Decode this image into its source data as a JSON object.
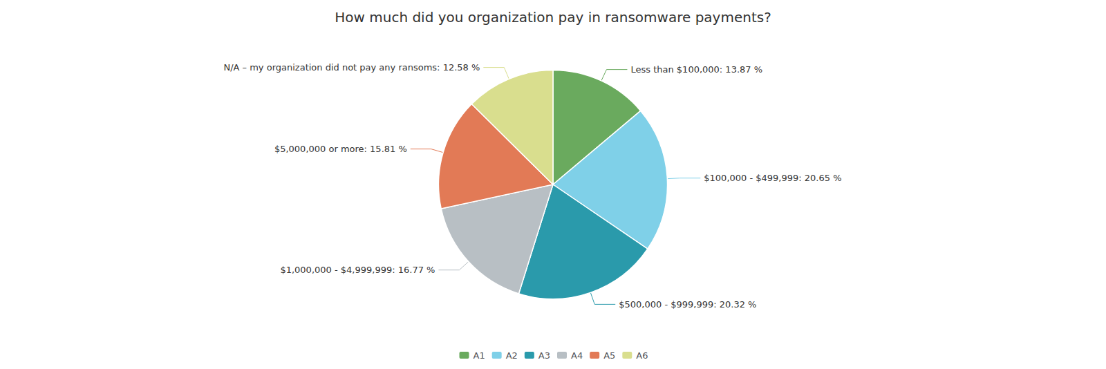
{
  "chart_data": {
    "type": "pie",
    "title": "How much did you organization pay in ransomware payments?",
    "categories": [
      "A1",
      "A2",
      "A3",
      "A4",
      "A5",
      "A6"
    ],
    "values": [
      13.87,
      20.65,
      20.32,
      16.77,
      15.81,
      12.58
    ],
    "value_labels": [
      "Less than $100,000: 13.87 %",
      "$100,000 - $499,999: 20.65 %",
      "$500,000 - $999,999: 20.32 %",
      "$1,000,000 - $4,999,999: 16.77 %",
      "$5,000,000 or more: 15.81 %",
      "N/A – my organization did not pay any ransoms: 12.58 %"
    ],
    "colors": [
      "#6aaa5e",
      "#7fd0e8",
      "#2a9aab",
      "#b8bfc4",
      "#e27a56",
      "#d9de8e"
    ],
    "data_labels": true,
    "legend": "bottom"
  }
}
